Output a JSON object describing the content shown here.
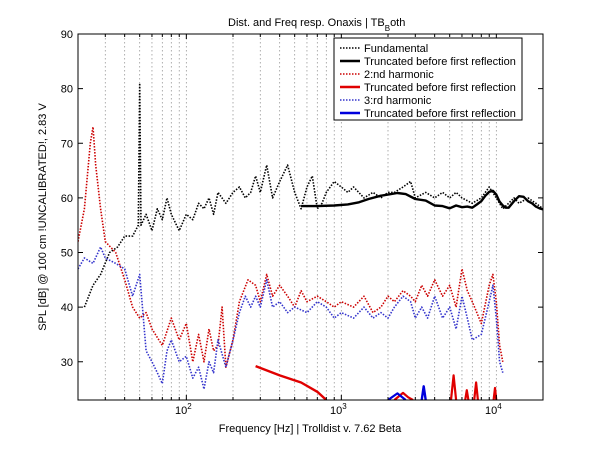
{
  "chart_data": {
    "type": "line",
    "title": "Dist. and Freq resp. Onaxis | TB",
    "title_subscript": "B",
    "title_suffix": "oth",
    "xlabel": "Frequency [Hz] | Trolldist v. 7.62 Beta",
    "ylabel": "SPL [dB] @ 100 cm !UNCALIBRATED!, 2.83 V",
    "x_scale": "log",
    "xlim": [
      20,
      20000
    ],
    "ylim": [
      23,
      90
    ],
    "grid": "vertical-log-dotted",
    "legend_position": "top-right",
    "x_ticks": [
      {
        "value": 100,
        "base": "10",
        "exp": "2"
      },
      {
        "value": 1000,
        "base": "10",
        "exp": "3"
      },
      {
        "value": 10000,
        "base": "10",
        "exp": "4"
      }
    ],
    "y_ticks": [
      30,
      40,
      50,
      60,
      70,
      80,
      90
    ],
    "series": [
      {
        "name": "Fundamental",
        "color": "#000000",
        "style": "dotted",
        "points": [
          [
            22,
            40
          ],
          [
            25,
            44
          ],
          [
            28,
            46
          ],
          [
            32,
            50
          ],
          [
            36,
            51
          ],
          [
            40,
            53
          ],
          [
            45,
            53
          ],
          [
            49,
            55
          ],
          [
            50,
            81
          ],
          [
            51,
            55
          ],
          [
            55,
            57
          ],
          [
            60,
            54
          ],
          [
            65,
            58
          ],
          [
            70,
            56
          ],
          [
            75,
            60
          ],
          [
            80,
            57
          ],
          [
            90,
            54
          ],
          [
            100,
            57
          ],
          [
            110,
            56
          ],
          [
            120,
            59
          ],
          [
            130,
            58
          ],
          [
            140,
            60
          ],
          [
            150,
            57
          ],
          [
            160,
            61
          ],
          [
            180,
            59
          ],
          [
            200,
            61
          ],
          [
            220,
            62
          ],
          [
            240,
            60
          ],
          [
            260,
            61
          ],
          [
            280,
            64
          ],
          [
            300,
            61
          ],
          [
            330,
            66
          ],
          [
            360,
            60
          ],
          [
            400,
            63
          ],
          [
            450,
            66
          ],
          [
            500,
            61
          ],
          [
            550,
            58
          ],
          [
            600,
            62
          ],
          [
            650,
            64
          ],
          [
            700,
            58
          ],
          [
            750,
            59
          ],
          [
            800,
            61
          ],
          [
            900,
            63
          ],
          [
            1000,
            62
          ],
          [
            1100,
            61
          ],
          [
            1200,
            62
          ],
          [
            1400,
            60
          ],
          [
            1600,
            61
          ],
          [
            1800,
            60
          ],
          [
            2000,
            61
          ],
          [
            2200,
            61
          ],
          [
            2500,
            62
          ],
          [
            2800,
            63
          ],
          [
            3000,
            60
          ],
          [
            3500,
            61
          ],
          [
            4000,
            60
          ],
          [
            4500,
            61
          ],
          [
            5000,
            60
          ],
          [
            5500,
            61
          ],
          [
            6000,
            60
          ],
          [
            7000,
            59
          ],
          [
            8000,
            60
          ],
          [
            9000,
            62
          ],
          [
            10000,
            60
          ],
          [
            11000,
            58
          ],
          [
            12000,
            59
          ],
          [
            13000,
            60
          ],
          [
            14000,
            59
          ],
          [
            16000,
            60
          ],
          [
            18000,
            59
          ],
          [
            20000,
            58
          ]
        ]
      },
      {
        "name": "Truncated before first reflection",
        "color": "#000000",
        "style": "solid",
        "points": [
          [
            550,
            58.5
          ],
          [
            700,
            58.5
          ],
          [
            900,
            58.6
          ],
          [
            1100,
            58.8
          ],
          [
            1300,
            59.2
          ],
          [
            1500,
            59.8
          ],
          [
            1800,
            60.4
          ],
          [
            2000,
            60.6
          ],
          [
            2300,
            60.9
          ],
          [
            2600,
            60.7
          ],
          [
            3000,
            59.8
          ],
          [
            3500,
            59.5
          ],
          [
            4000,
            58.6
          ],
          [
            4500,
            58.5
          ],
          [
            5000,
            58.1
          ],
          [
            5500,
            58.6
          ],
          [
            6000,
            58.3
          ],
          [
            6500,
            58.4
          ],
          [
            7000,
            58.2
          ],
          [
            7500,
            58.8
          ],
          [
            8000,
            59.4
          ],
          [
            8500,
            60.4
          ],
          [
            9000,
            61.1
          ],
          [
            9500,
            61.3
          ],
          [
            10000,
            60.6
          ],
          [
            10500,
            59.3
          ],
          [
            11000,
            58.6
          ],
          [
            11500,
            58.2
          ],
          [
            12000,
            58.2
          ],
          [
            13000,
            59.4
          ],
          [
            14000,
            60.3
          ],
          [
            15000,
            60.2
          ],
          [
            16000,
            59.4
          ],
          [
            17000,
            59.0
          ],
          [
            18000,
            58.4
          ],
          [
            19000,
            58.1
          ],
          [
            20000,
            57.9
          ]
        ]
      },
      {
        "name": "2:nd harmonic",
        "color": "#cc0000",
        "style": "dotted",
        "points": [
          [
            20,
            52
          ],
          [
            22,
            58
          ],
          [
            24,
            70
          ],
          [
            25,
            73
          ],
          [
            26,
            66
          ],
          [
            28,
            58
          ],
          [
            30,
            52
          ],
          [
            35,
            50
          ],
          [
            40,
            45
          ],
          [
            45,
            40
          ],
          [
            50,
            38
          ],
          [
            55,
            39
          ],
          [
            60,
            36
          ],
          [
            70,
            33
          ],
          [
            80,
            38
          ],
          [
            90,
            34
          ],
          [
            100,
            37
          ],
          [
            110,
            30
          ],
          [
            120,
            35
          ],
          [
            130,
            30
          ],
          [
            140,
            36
          ],
          [
            150,
            32
          ],
          [
            160,
            33
          ],
          [
            170,
            40
          ],
          [
            180,
            29
          ],
          [
            200,
            34
          ],
          [
            220,
            41
          ],
          [
            250,
            45
          ],
          [
            280,
            44
          ],
          [
            300,
            41
          ],
          [
            330,
            46
          ],
          [
            360,
            42
          ],
          [
            400,
            44
          ],
          [
            450,
            42
          ],
          [
            500,
            40
          ],
          [
            550,
            43
          ],
          [
            600,
            41
          ],
          [
            700,
            42
          ],
          [
            800,
            41
          ],
          [
            900,
            40
          ],
          [
            1000,
            41
          ],
          [
            1200,
            40
          ],
          [
            1400,
            42
          ],
          [
            1600,
            39
          ],
          [
            1800,
            40
          ],
          [
            2000,
            42
          ],
          [
            2200,
            41
          ],
          [
            2500,
            43
          ],
          [
            2800,
            42
          ],
          [
            3000,
            41
          ],
          [
            3300,
            44
          ],
          [
            3600,
            42
          ],
          [
            4000,
            45
          ],
          [
            4500,
            42
          ],
          [
            5000,
            44
          ],
          [
            5500,
            40
          ],
          [
            6000,
            47
          ],
          [
            6500,
            43
          ],
          [
            7000,
            41
          ],
          [
            8000,
            37
          ],
          [
            9000,
            44
          ],
          [
            9500,
            46
          ],
          [
            10000,
            41
          ],
          [
            10500,
            33
          ],
          [
            11000,
            30
          ]
        ]
      },
      {
        "name": "Truncated before first reflection",
        "color": "#e00000",
        "style": "solid",
        "points": [
          [
            280,
            29.2
          ],
          [
            400,
            27.5
          ],
          [
            550,
            26.2
          ],
          [
            700,
            24.5
          ],
          [
            800,
            23
          ]
        ]
      },
      {
        "name": "3:rd harmonic",
        "color": "#3333cc",
        "style": "dotted",
        "points": [
          [
            20,
            47
          ],
          [
            22,
            49
          ],
          [
            25,
            48
          ],
          [
            28,
            51
          ],
          [
            30,
            49
          ],
          [
            35,
            48
          ],
          [
            40,
            47
          ],
          [
            45,
            42
          ],
          [
            50,
            46
          ],
          [
            55,
            32
          ],
          [
            60,
            30
          ],
          [
            65,
            28
          ],
          [
            70,
            26
          ],
          [
            75,
            32
          ],
          [
            80,
            34
          ],
          [
            90,
            30
          ],
          [
            100,
            31
          ],
          [
            110,
            27
          ],
          [
            120,
            29
          ],
          [
            130,
            25
          ],
          [
            140,
            30
          ],
          [
            150,
            28
          ],
          [
            160,
            34
          ],
          [
            180,
            29
          ],
          [
            200,
            34
          ],
          [
            220,
            39
          ],
          [
            240,
            42
          ],
          [
            260,
            40
          ],
          [
            280,
            42
          ],
          [
            300,
            40
          ],
          [
            330,
            45
          ],
          [
            360,
            40
          ],
          [
            400,
            41
          ],
          [
            450,
            39
          ],
          [
            500,
            40
          ],
          [
            600,
            39
          ],
          [
            700,
            41
          ],
          [
            800,
            40
          ],
          [
            900,
            38
          ],
          [
            1000,
            39
          ],
          [
            1200,
            38
          ],
          [
            1400,
            40
          ],
          [
            1600,
            38
          ],
          [
            1800,
            39
          ],
          [
            2000,
            38
          ],
          [
            2200,
            40
          ],
          [
            2500,
            42
          ],
          [
            2800,
            41
          ],
          [
            3000,
            38
          ],
          [
            3300,
            40
          ],
          [
            3600,
            38
          ],
          [
            4000,
            42
          ],
          [
            4500,
            38
          ],
          [
            5000,
            40
          ],
          [
            5500,
            36
          ],
          [
            6000,
            42
          ],
          [
            6500,
            38
          ],
          [
            7000,
            34
          ],
          [
            8000,
            35
          ],
          [
            9000,
            41
          ],
          [
            9500,
            44
          ],
          [
            10000,
            38
          ],
          [
            10500,
            30
          ],
          [
            11000,
            28
          ]
        ]
      },
      {
        "name": "Truncated before first reflection",
        "color": "#0000dd",
        "style": "solid",
        "points": [
          [
            3300,
            23
          ],
          [
            3400,
            25.5
          ],
          [
            3500,
            23
          ]
        ]
      }
    ],
    "extra_segments": [
      {
        "color": "#e00000",
        "style": "solid",
        "points": [
          [
            2200,
            23
          ],
          [
            2500,
            24.3
          ],
          [
            2700,
            23.5
          ],
          [
            2900,
            23
          ]
        ]
      },
      {
        "color": "#e00000",
        "style": "solid",
        "points": [
          [
            5100,
            23
          ],
          [
            5300,
            27.5
          ],
          [
            5500,
            23
          ]
        ]
      },
      {
        "color": "#e00000",
        "style": "solid",
        "points": [
          [
            6300,
            23
          ],
          [
            6450,
            24.8
          ],
          [
            6600,
            23
          ]
        ]
      },
      {
        "color": "#e00000",
        "style": "solid",
        "points": [
          [
            7200,
            23
          ],
          [
            7400,
            26.2
          ],
          [
            7600,
            23
          ]
        ]
      },
      {
        "color": "#e00000",
        "style": "solid",
        "points": [
          [
            9600,
            23
          ],
          [
            9800,
            25.2
          ],
          [
            10000,
            23
          ]
        ]
      },
      {
        "color": "#0000dd",
        "style": "solid",
        "points": [
          [
            2000,
            23
          ],
          [
            2300,
            24.2
          ],
          [
            2600,
            23
          ]
        ]
      }
    ]
  }
}
